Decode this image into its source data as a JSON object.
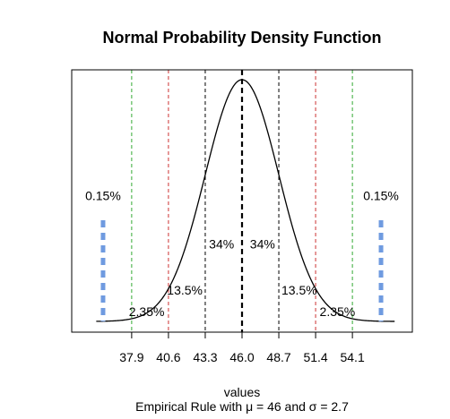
{
  "chart_data": {
    "type": "line",
    "title": "Normal Probability Density Function",
    "xlabel": "values",
    "subtitle": "Empirical Rule with μ = 46 and σ = 2.7",
    "mu": 46,
    "sigma": 2.7,
    "xlim": [
      33.5,
      58.5
    ],
    "x_ticks": [
      37.9,
      40.6,
      43.3,
      46.0,
      48.7,
      51.4,
      54.1
    ],
    "x_tick_labels": [
      "37.9",
      "40.6",
      "43.3",
      "46.0",
      "48.7",
      "51.4",
      "54.1"
    ],
    "grid": false,
    "reference_lines": [
      {
        "x": 46.0,
        "color": "#000000",
        "style": "bold-dashed"
      },
      {
        "x": 43.3,
        "color": "#000000",
        "style": "dashed"
      },
      {
        "x": 48.7,
        "color": "#000000",
        "style": "dashed"
      },
      {
        "x": 40.6,
        "color": "#cc3333",
        "style": "dashed"
      },
      {
        "x": 51.4,
        "color": "#cc3333",
        "style": "dashed"
      },
      {
        "x": 37.9,
        "color": "#33aa33",
        "style": "dashed"
      },
      {
        "x": 54.1,
        "color": "#33aa33",
        "style": "dashed"
      }
    ],
    "tail_markers": [
      {
        "x": 35.8,
        "color": "#6f9be0"
      },
      {
        "x": 56.2,
        "color": "#6f9be0"
      }
    ],
    "annotations": [
      {
        "text": "0.15%",
        "x": 35.8,
        "y_frac": 0.52
      },
      {
        "text": "0.15%",
        "x": 56.2,
        "y_frac": 0.52
      },
      {
        "text": "34%",
        "x": 44.5,
        "y_frac": 0.32
      },
      {
        "text": "34%",
        "x": 47.5,
        "y_frac": 0.32
      },
      {
        "text": "13.5%",
        "x": 41.8,
        "y_frac": 0.13
      },
      {
        "text": "13.5%",
        "x": 50.2,
        "y_frac": 0.13
      },
      {
        "text": "2.35%",
        "x": 39.0,
        "y_frac": 0.04
      },
      {
        "text": "2.35%",
        "x": 53.0,
        "y_frac": 0.04
      }
    ]
  }
}
